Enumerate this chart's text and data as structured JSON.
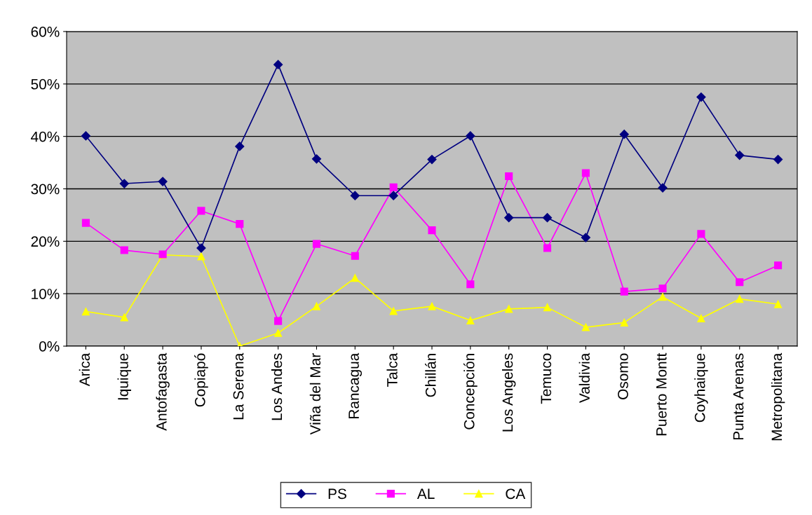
{
  "chart_data": {
    "type": "line",
    "categories": [
      "Arica",
      "Iquique",
      "Antofagasta",
      "Copiapó",
      "La Serena",
      "Los Andes",
      "Viña del Mar",
      "Rancagua",
      "Talca",
      "Chillán",
      "Concepción",
      "Los Angeles",
      "Temuco",
      "Valdivia",
      "Osomo",
      "Puerto Montt",
      "Coyhaique",
      "Punta Arenas",
      "Metropolitana"
    ],
    "series": [
      {
        "name": "PS",
        "color": "#000080",
        "marker": "diamond",
        "values": [
          40.1,
          31,
          31.4,
          18.7,
          38.1,
          53.7,
          35.7,
          28.7,
          28.7,
          35.6,
          40.1,
          24.5,
          24.5,
          20.7,
          40.4,
          30.2,
          47.5,
          36.4,
          35.6
        ]
      },
      {
        "name": "AL",
        "color": "#ff00ff",
        "marker": "square",
        "values": [
          23.5,
          18.3,
          17.5,
          25.8,
          23.3,
          4.8,
          19.5,
          17.2,
          30.3,
          22.1,
          11.8,
          32.4,
          18.7,
          33,
          10.4,
          11,
          21.4,
          12.2,
          15.4
        ]
      },
      {
        "name": "CA",
        "color": "#ffff00",
        "marker": "triangle",
        "values": [
          6.6,
          5.5,
          17.4,
          17.1,
          0,
          2.5,
          7.6,
          13,
          6.7,
          7.6,
          4.9,
          7.1,
          7.4,
          3.6,
          4.5,
          9.4,
          5.3,
          9,
          8
        ]
      }
    ],
    "ylim": [
      0,
      60
    ],
    "yticks": [
      {
        "value": 0,
        "label": "0%"
      },
      {
        "value": 10,
        "label": "10%"
      },
      {
        "value": 20,
        "label": "20%"
      },
      {
        "value": 30,
        "label": "30%"
      },
      {
        "value": 40,
        "label": "40%"
      },
      {
        "value": 50,
        "label": "50%"
      },
      {
        "value": 60,
        "label": "60%"
      }
    ],
    "grid": "y",
    "legend": "bottom",
    "line_style": "solid"
  }
}
